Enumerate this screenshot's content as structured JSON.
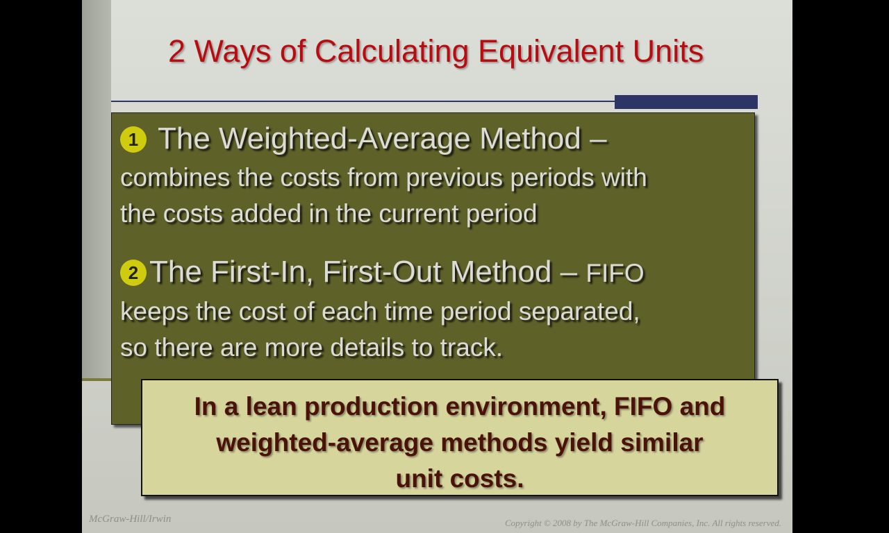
{
  "slide": {
    "title": "2 Ways of Calculating Equivalent Units",
    "points": [
      {
        "number": "1",
        "heading": "The Weighted-Average Method –",
        "lines": [
          "combines the costs from previous periods with",
          "the costs added in the current period"
        ]
      },
      {
        "number": "2",
        "heading": "The First-In, First-Out Method – ",
        "heading_suffix": "FIFO",
        "lines": [
          "keeps the cost of each time period separated,",
          "so there are more details to track."
        ]
      }
    ],
    "callout": [
      "In a lean production environment, FIFO and",
      "weighted-average methods yield similar",
      "unit costs."
    ],
    "footer_left": "McGraw-Hill/Irwin",
    "footer_right": "Copyright © 2008 by The McGraw-Hill Companies, Inc. All rights reserved."
  },
  "colors": {
    "title": "#b80c10",
    "panel": "#5e6128",
    "bullet": "#cfcc10",
    "callout_bg": "#d6d59c",
    "callout_text": "#4a1208",
    "accent_bar": "#2d3566"
  },
  "icons": {
    "bullet_1": "circled-number-one",
    "bullet_2": "circled-number-two"
  }
}
